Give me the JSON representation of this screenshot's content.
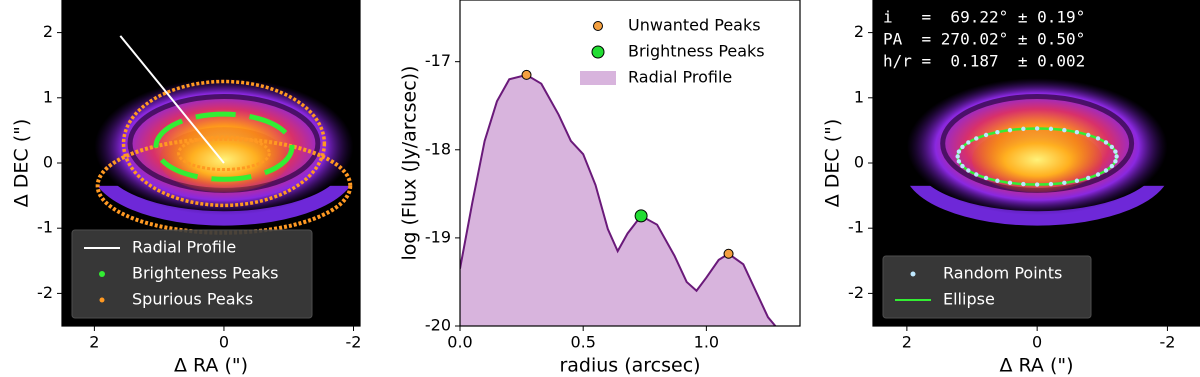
{
  "chart_data": [
    {
      "type": "image",
      "xlabel": "Δ RA (\")",
      "ylabel": "Δ DEC (\")",
      "xlim": [
        2.5,
        -2.1
      ],
      "ylim": [
        -2.5,
        2.5
      ],
      "xticks": [
        2,
        0,
        -2
      ],
      "yticks": [
        -2,
        -1,
        0,
        1,
        2
      ],
      "profile_line": {
        "name": "Radial Profile",
        "color": "#ffffff",
        "x": [
          1.6,
          0
        ],
        "y": [
          1.95,
          0
        ]
      },
      "legend": [
        {
          "name": "Radial Profile",
          "color": "#ffffff",
          "marker": "line"
        },
        {
          "name": "Brighteness Peaks",
          "color": "#33ee33",
          "marker": "dot"
        },
        {
          "name": "Spurious Peaks",
          "color": "#ff9922",
          "marker": "small-dot"
        }
      ],
      "legend_loc": "lower left"
    },
    {
      "type": "line",
      "xlabel": "radius (arcsec)",
      "ylabel": "log (Flux (Jy/arcsec))",
      "xlim": [
        0,
        1.38
      ],
      "ylim": [
        -20,
        -16.3
      ],
      "xticks": [
        {
          "value": 0,
          "label": "0.0"
        },
        {
          "value": 0.5,
          "label": "0.5"
        },
        {
          "value": 1,
          "label": "1.0"
        }
      ],
      "yticks": [
        -20,
        -19,
        -18,
        -17
      ],
      "series": [
        {
          "name": "Unwanted Peaks",
          "color": "#f4a040",
          "marker": "dot",
          "x": [
            0.27,
            1.09
          ],
          "values": [
            -17.15,
            -19.18
          ]
        },
        {
          "name": "Brightness Peaks",
          "color": "#22dd33",
          "marker": "big-dot",
          "x": [
            0.735
          ],
          "values": [
            -18.75
          ]
        },
        {
          "name": "Radial Profile",
          "color": "#d8b4dd",
          "line_color": "#6a1a7a",
          "marker": "area",
          "x": [
            0,
            0.05,
            0.1,
            0.15,
            0.2,
            0.27,
            0.33,
            0.4,
            0.45,
            0.5,
            0.55,
            0.6,
            0.64,
            0.68,
            0.735,
            0.8,
            0.87,
            0.92,
            0.96,
            1.0,
            1.05,
            1.09,
            1.15,
            1.2,
            1.25,
            1.28
          ],
          "values": [
            -19.35,
            -18.6,
            -17.9,
            -17.45,
            -17.2,
            -17.15,
            -17.25,
            -17.6,
            -17.9,
            -18.05,
            -18.4,
            -18.9,
            -19.15,
            -18.95,
            -18.75,
            -18.85,
            -19.2,
            -19.5,
            -19.6,
            -19.45,
            -19.25,
            -19.18,
            -19.3,
            -19.6,
            -19.9,
            -20
          ]
        }
      ],
      "legend_loc": "upper right"
    },
    {
      "type": "image",
      "xlabel": "Δ RA (\")",
      "ylabel": "Δ DEC (\")",
      "xlim": [
        2.52,
        -2.5
      ],
      "ylim": [
        -2.5,
        2.5
      ],
      "xticks": [
        2,
        0,
        -2
      ],
      "yticks": [
        -2,
        -1,
        0,
        1,
        2
      ],
      "annotations": [
        "i   =  69.22° ± 0.19°",
        "PA  = 270.02° ± 0.50°",
        "h/r =  0.187  ± 0.002"
      ],
      "legend": [
        {
          "name": "Random Points",
          "color": "#bfe8ff",
          "marker": "small-dot"
        },
        {
          "name": "Ellipse",
          "color": "#33ee33",
          "marker": "line"
        }
      ],
      "legend_loc": "lower left"
    }
  ]
}
